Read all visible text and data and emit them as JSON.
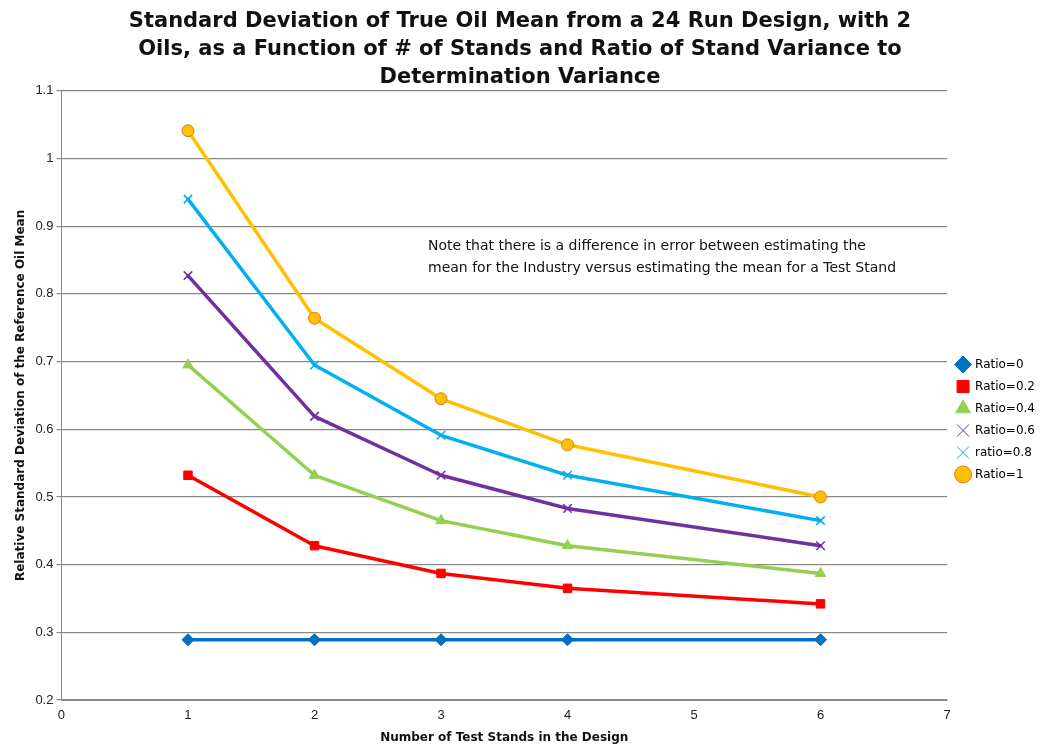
{
  "chart_data": {
    "type": "line",
    "title": "Standard Deviation of True Oil Mean from a 24 Run Design, with 2 Oils, as a Function of # of Stands and Ratio of Stand Variance to Determination Variance",
    "xlabel": "Number of Test Stands in the Design",
    "ylabel": "Relative Standard Deviation of the Reference Oil Mean",
    "x": [
      1,
      2,
      3,
      4,
      6
    ],
    "series": [
      {
        "name": "Ratio=0",
        "color": "#0070c0",
        "marker": "diamond",
        "values": [
          0.289,
          0.289,
          0.289,
          0.289,
          0.289
        ]
      },
      {
        "name": "Ratio=0.2",
        "color": "#ff0000",
        "marker": "square",
        "values": [
          0.532,
          0.428,
          0.387,
          0.365,
          0.342
        ]
      },
      {
        "name": "Ratio=0.4",
        "color": "#92d050",
        "marker": "triangle",
        "values": [
          0.695,
          0.532,
          0.465,
          0.428,
          0.387
        ]
      },
      {
        "name": "Ratio=0.6",
        "color": "#7030a0",
        "marker": "cross",
        "values": [
          0.827,
          0.619,
          0.532,
          0.483,
          0.428
        ]
      },
      {
        "name": "ratio=0.8",
        "color": "#00b0f0",
        "marker": "cross",
        "values": [
          0.94,
          0.695,
          0.591,
          0.532,
          0.465
        ]
      },
      {
        "name": "Ratio=1",
        "color": "#ffc000",
        "marker": "circle",
        "values": [
          1.041,
          0.764,
          0.645,
          0.577,
          0.5
        ]
      }
    ],
    "xlim": [
      0,
      7
    ],
    "xticks": [
      0,
      1,
      2,
      3,
      4,
      5,
      6,
      7
    ],
    "ylim": [
      0.2,
      1.1
    ],
    "yticks": [
      0.2,
      0.3,
      0.4,
      0.5,
      0.6,
      0.7,
      0.8,
      0.9,
      1,
      1.1
    ],
    "grid": "y",
    "legend": "right",
    "line_style": "solid",
    "annotations": [
      "Note that there is a difference in error between estimating the mean for the Industry versus estimating the mean for a Test Stand"
    ]
  }
}
